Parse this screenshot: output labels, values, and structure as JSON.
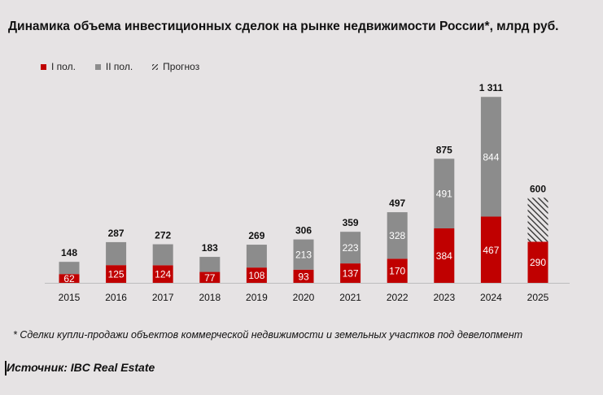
{
  "title": "Динамика объема инвестиционных сделок на рынке недвижимости России*, млрд руб.",
  "footnote": "* Сделки купли-продажи объектов коммерческой недвижимости и земельных участков под девелопмент",
  "source": "Источник: IBC Real Estate",
  "colors": {
    "h1": "#c00000",
    "h2": "#8c8c8c",
    "forecast": "#333333",
    "background": "#e6e3e4"
  },
  "chart_data": {
    "type": "bar",
    "stacked": true,
    "categories": [
      "2015",
      "2016",
      "2017",
      "2018",
      "2019",
      "2020",
      "2021",
      "2022",
      "2023",
      "2024",
      "2025"
    ],
    "series": [
      {
        "name": "I пол.",
        "values": [
          62,
          125,
          124,
          77,
          108,
          93,
          137,
          170,
          384,
          467,
          290
        ],
        "labels": [
          "62",
          "125",
          "124",
          "77",
          "108",
          "93",
          "137",
          "170",
          "384",
          "467",
          "290"
        ]
      },
      {
        "name": "II пол.",
        "values": [
          86,
          162,
          148,
          106,
          161,
          213,
          223,
          328,
          491,
          844,
          null
        ],
        "labels": [
          "",
          "",
          "",
          "",
          "",
          "213",
          "223",
          "328",
          "491",
          "844",
          ""
        ]
      },
      {
        "name": "Прогноз",
        "values": [
          null,
          null,
          null,
          null,
          null,
          null,
          null,
          null,
          null,
          null,
          310
        ]
      }
    ],
    "totals": [
      148,
      287,
      272,
      183,
      269,
      306,
      359,
      497,
      875,
      1311,
      600
    ],
    "total_labels": [
      "148",
      "287",
      "272",
      "183",
      "269",
      "306",
      "359",
      "497",
      "875",
      "1 311",
      "600"
    ],
    "ylim": [
      0,
      1400
    ],
    "legend_position": "top-left"
  }
}
